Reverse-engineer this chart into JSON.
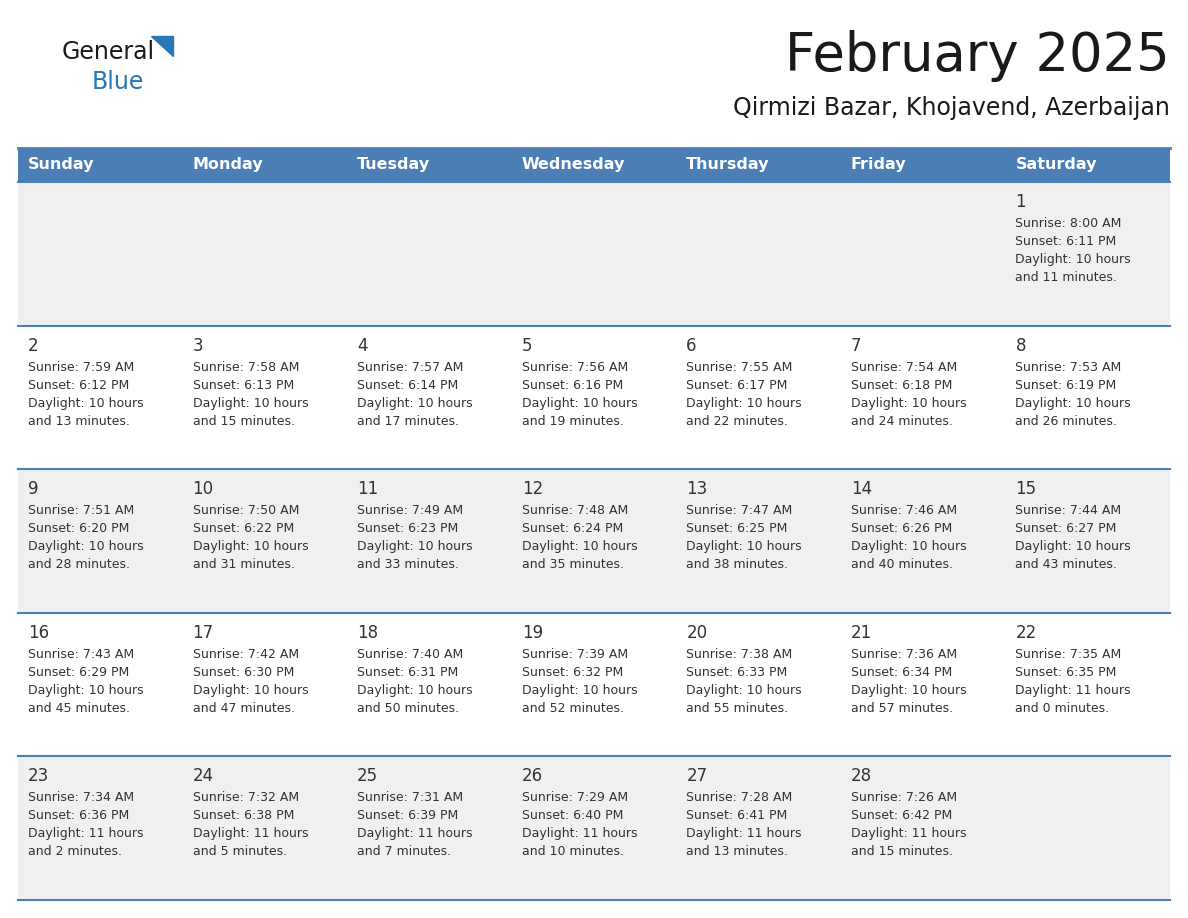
{
  "title": "February 2025",
  "subtitle": "Qirmizi Bazar, Khojavend, Azerbaijan",
  "header_bg": "#4a7eb5",
  "header_text": "#ffffff",
  "row_bg_odd": "#f0f0f0",
  "row_bg_even": "#ffffff",
  "cell_border": "#4a7eb5",
  "days_of_week": [
    "Sunday",
    "Monday",
    "Tuesday",
    "Wednesday",
    "Thursday",
    "Friday",
    "Saturday"
  ],
  "title_color": "#1a1a1a",
  "subtitle_color": "#1a1a1a",
  "day_num_color": "#333333",
  "info_color": "#333333",
  "calendar": [
    [
      null,
      null,
      null,
      null,
      null,
      null,
      {
        "day": 1,
        "sunrise": "8:00 AM",
        "sunset": "6:11 PM",
        "daylight_line1": "Daylight: 10 hours",
        "daylight_line2": "and 11 minutes."
      }
    ],
    [
      {
        "day": 2,
        "sunrise": "7:59 AM",
        "sunset": "6:12 PM",
        "daylight_line1": "Daylight: 10 hours",
        "daylight_line2": "and 13 minutes."
      },
      {
        "day": 3,
        "sunrise": "7:58 AM",
        "sunset": "6:13 PM",
        "daylight_line1": "Daylight: 10 hours",
        "daylight_line2": "and 15 minutes."
      },
      {
        "day": 4,
        "sunrise": "7:57 AM",
        "sunset": "6:14 PM",
        "daylight_line1": "Daylight: 10 hours",
        "daylight_line2": "and 17 minutes."
      },
      {
        "day": 5,
        "sunrise": "7:56 AM",
        "sunset": "6:16 PM",
        "daylight_line1": "Daylight: 10 hours",
        "daylight_line2": "and 19 minutes."
      },
      {
        "day": 6,
        "sunrise": "7:55 AM",
        "sunset": "6:17 PM",
        "daylight_line1": "Daylight: 10 hours",
        "daylight_line2": "and 22 minutes."
      },
      {
        "day": 7,
        "sunrise": "7:54 AM",
        "sunset": "6:18 PM",
        "daylight_line1": "Daylight: 10 hours",
        "daylight_line2": "and 24 minutes."
      },
      {
        "day": 8,
        "sunrise": "7:53 AM",
        "sunset": "6:19 PM",
        "daylight_line1": "Daylight: 10 hours",
        "daylight_line2": "and 26 minutes."
      }
    ],
    [
      {
        "day": 9,
        "sunrise": "7:51 AM",
        "sunset": "6:20 PM",
        "daylight_line1": "Daylight: 10 hours",
        "daylight_line2": "and 28 minutes."
      },
      {
        "day": 10,
        "sunrise": "7:50 AM",
        "sunset": "6:22 PM",
        "daylight_line1": "Daylight: 10 hours",
        "daylight_line2": "and 31 minutes."
      },
      {
        "day": 11,
        "sunrise": "7:49 AM",
        "sunset": "6:23 PM",
        "daylight_line1": "Daylight: 10 hours",
        "daylight_line2": "and 33 minutes."
      },
      {
        "day": 12,
        "sunrise": "7:48 AM",
        "sunset": "6:24 PM",
        "daylight_line1": "Daylight: 10 hours",
        "daylight_line2": "and 35 minutes."
      },
      {
        "day": 13,
        "sunrise": "7:47 AM",
        "sunset": "6:25 PM",
        "daylight_line1": "Daylight: 10 hours",
        "daylight_line2": "and 38 minutes."
      },
      {
        "day": 14,
        "sunrise": "7:46 AM",
        "sunset": "6:26 PM",
        "daylight_line1": "Daylight: 10 hours",
        "daylight_line2": "and 40 minutes."
      },
      {
        "day": 15,
        "sunrise": "7:44 AM",
        "sunset": "6:27 PM",
        "daylight_line1": "Daylight: 10 hours",
        "daylight_line2": "and 43 minutes."
      }
    ],
    [
      {
        "day": 16,
        "sunrise": "7:43 AM",
        "sunset": "6:29 PM",
        "daylight_line1": "Daylight: 10 hours",
        "daylight_line2": "and 45 minutes."
      },
      {
        "day": 17,
        "sunrise": "7:42 AM",
        "sunset": "6:30 PM",
        "daylight_line1": "Daylight: 10 hours",
        "daylight_line2": "and 47 minutes."
      },
      {
        "day": 18,
        "sunrise": "7:40 AM",
        "sunset": "6:31 PM",
        "daylight_line1": "Daylight: 10 hours",
        "daylight_line2": "and 50 minutes."
      },
      {
        "day": 19,
        "sunrise": "7:39 AM",
        "sunset": "6:32 PM",
        "daylight_line1": "Daylight: 10 hours",
        "daylight_line2": "and 52 minutes."
      },
      {
        "day": 20,
        "sunrise": "7:38 AM",
        "sunset": "6:33 PM",
        "daylight_line1": "Daylight: 10 hours",
        "daylight_line2": "and 55 minutes."
      },
      {
        "day": 21,
        "sunrise": "7:36 AM",
        "sunset": "6:34 PM",
        "daylight_line1": "Daylight: 10 hours",
        "daylight_line2": "and 57 minutes."
      },
      {
        "day": 22,
        "sunrise": "7:35 AM",
        "sunset": "6:35 PM",
        "daylight_line1": "Daylight: 11 hours",
        "daylight_line2": "and 0 minutes."
      }
    ],
    [
      {
        "day": 23,
        "sunrise": "7:34 AM",
        "sunset": "6:36 PM",
        "daylight_line1": "Daylight: 11 hours",
        "daylight_line2": "and 2 minutes."
      },
      {
        "day": 24,
        "sunrise": "7:32 AM",
        "sunset": "6:38 PM",
        "daylight_line1": "Daylight: 11 hours",
        "daylight_line2": "and 5 minutes."
      },
      {
        "day": 25,
        "sunrise": "7:31 AM",
        "sunset": "6:39 PM",
        "daylight_line1": "Daylight: 11 hours",
        "daylight_line2": "and 7 minutes."
      },
      {
        "day": 26,
        "sunrise": "7:29 AM",
        "sunset": "6:40 PM",
        "daylight_line1": "Daylight: 11 hours",
        "daylight_line2": "and 10 minutes."
      },
      {
        "day": 27,
        "sunrise": "7:28 AM",
        "sunset": "6:41 PM",
        "daylight_line1": "Daylight: 11 hours",
        "daylight_line2": "and 13 minutes."
      },
      {
        "day": 28,
        "sunrise": "7:26 AM",
        "sunset": "6:42 PM",
        "daylight_line1": "Daylight: 11 hours",
        "daylight_line2": "and 15 minutes."
      },
      null
    ]
  ],
  "logo_text1": "General",
  "logo_text2": "Blue",
  "logo_color1": "#1a1a1a",
  "logo_color2": "#2577b5",
  "logo_triangle_color": "#2577b5",
  "fig_width": 11.88,
  "fig_height": 9.18,
  "dpi": 100
}
